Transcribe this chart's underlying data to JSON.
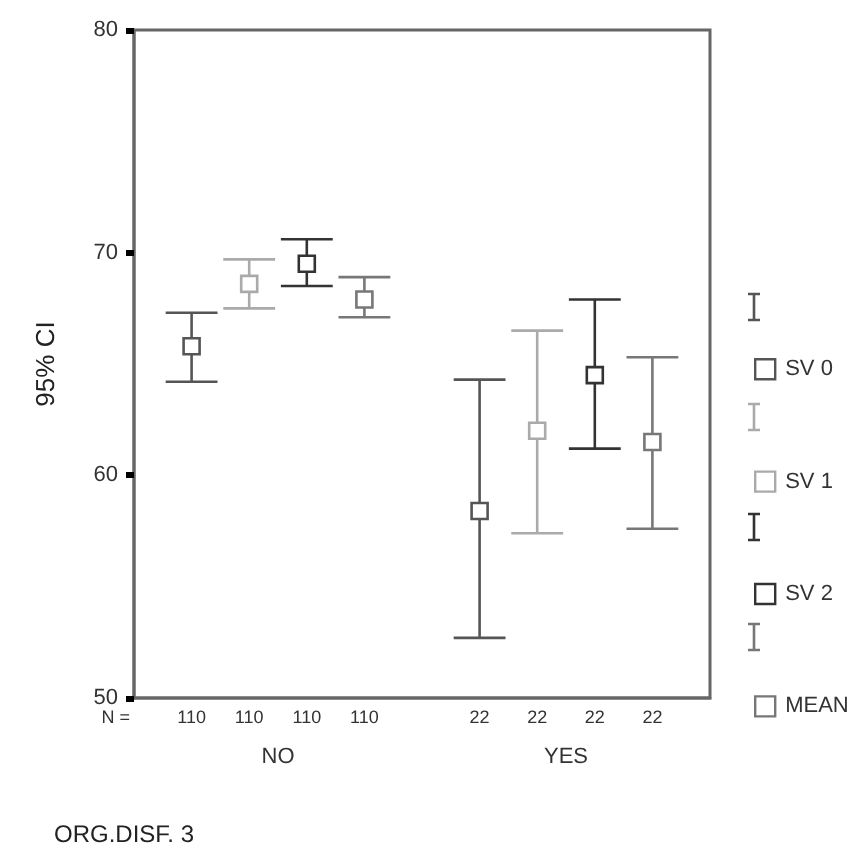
{
  "chart_data": {
    "type": "scatter",
    "xlabel": "ORG.DISF. 3",
    "ylabel": "95% CI",
    "categories": [
      "NO",
      "YES"
    ],
    "series": [
      {
        "name": "SV 0",
        "color": "#555555",
        "values": [
          65.8,
          58.4
        ],
        "errors": [
          [
            64.2,
            67.3
          ],
          [
            52.7,
            64.3
          ]
        ]
      },
      {
        "name": "SV 1",
        "color": "#aaaaaa",
        "values": [
          68.6,
          62.0
        ],
        "errors": [
          [
            67.5,
            69.7
          ],
          [
            57.4,
            66.5
          ]
        ]
      },
      {
        "name": "SV 2",
        "color": "#333333",
        "values": [
          69.5,
          64.5
        ],
        "errors": [
          [
            68.5,
            70.6
          ],
          [
            61.2,
            67.9
          ]
        ]
      },
      {
        "name": "MEAN",
        "color": "#777777",
        "values": [
          67.9,
          61.5
        ],
        "errors": [
          [
            67.1,
            68.9
          ],
          [
            57.6,
            65.3
          ]
        ]
      }
    ],
    "ylim": [
      50,
      80
    ],
    "yticks": [
      50,
      60,
      70,
      80
    ],
    "grid": false,
    "legend": "right",
    "marker": "square",
    "annotations": [
      "N =",
      "110",
      "110",
      "110",
      "110",
      "22",
      "22",
      "22",
      "22"
    ]
  }
}
